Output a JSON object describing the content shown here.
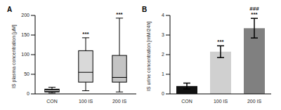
{
  "chart_data": [
    {
      "title": "A",
      "type": "box",
      "ylabel": "IS plasma concentration [µM]",
      "categories": [
        "CON",
        "100 IS",
        "200 IS"
      ],
      "colors": [
        "#111111",
        "#d9d9d9",
        "#c4c4c4"
      ],
      "min": [
        2,
        8,
        5
      ],
      "q1": [
        5,
        30,
        30
      ],
      "median": [
        8,
        55,
        42
      ],
      "q3": [
        12,
        110,
        98
      ],
      "max": [
        17,
        143,
        193
      ],
      "annotations": [
        null,
        "***",
        "***"
      ],
      "ylim": [
        0,
        200
      ],
      "yticks": [
        0,
        50,
        100,
        150,
        200
      ]
    },
    {
      "title": "B",
      "type": "bar",
      "ylabel": "IS urine concentration [mM/24h]",
      "categories": [
        "CON",
        "100 IS",
        "200 IS"
      ],
      "values": [
        0.4,
        2.15,
        3.35
      ],
      "errors": [
        0.15,
        0.3,
        0.5
      ],
      "colors": [
        "#111111",
        "#d0d0d0",
        "#808080"
      ],
      "annotations": [
        null,
        "***",
        "***"
      ],
      "annotations_2": [
        null,
        null,
        "###"
      ],
      "ylim": [
        0,
        4
      ],
      "yticks": [
        0,
        1,
        2,
        3,
        4
      ]
    }
  ]
}
